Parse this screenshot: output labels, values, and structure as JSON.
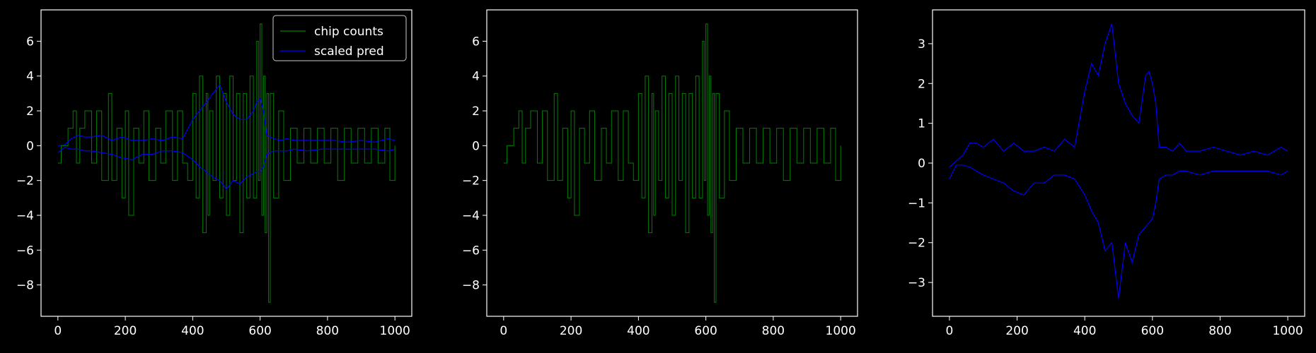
{
  "chart_data": [
    {
      "type": "line",
      "legend": {
        "placement": "top-right",
        "entries": [
          "chip counts",
          "scaled pred"
        ]
      },
      "x_ticks": [
        "0",
        "200",
        "400",
        "600",
        "800",
        "1000"
      ],
      "y_ticks": [
        "−8",
        "−6",
        "−4",
        "−2",
        "0",
        "2",
        "4",
        "6"
      ],
      "xlim": [
        -50,
        1050
      ],
      "ylim": [
        -9.8,
        7.8
      ],
      "grid": false,
      "series": [
        {
          "name": "chip counts",
          "color": "#008000",
          "style": "step",
          "x": [
            0,
            10,
            30,
            45,
            55,
            65,
            80,
            100,
            115,
            130,
            150,
            160,
            175,
            190,
            200,
            210,
            225,
            240,
            255,
            270,
            290,
            305,
            320,
            340,
            355,
            370,
            385,
            400,
            410,
            420,
            430,
            440,
            445,
            450,
            460,
            470,
            480,
            490,
            500,
            510,
            520,
            530,
            540,
            550,
            560,
            570,
            580,
            590,
            595,
            600,
            605,
            610,
            615,
            620,
            625,
            630,
            640,
            655,
            670,
            690,
            710,
            730,
            750,
            770,
            790,
            810,
            830,
            850,
            870,
            890,
            910,
            930,
            950,
            970,
            985,
            1000
          ],
          "y": [
            -1,
            0,
            1,
            2,
            -1,
            1,
            2,
            -1,
            2,
            -2,
            3,
            -2,
            1,
            -3,
            2,
            -4,
            1,
            -1,
            2,
            -2,
            1,
            -1,
            2,
            -2,
            2,
            -1,
            -2,
            3,
            -3,
            4,
            -5,
            3,
            -4,
            2,
            -2,
            4,
            -3,
            3,
            -4,
            4,
            -2,
            3,
            -5,
            3,
            -3,
            4,
            -3,
            6,
            -2,
            7,
            -4,
            4,
            -5,
            3,
            -9,
            3,
            -3,
            2,
            -2,
            1,
            -1,
            1,
            -1,
            1,
            -1,
            1,
            -2,
            1,
            -1,
            1,
            -1,
            1,
            -1,
            1,
            -2,
            0
          ]
        },
        {
          "name": "scaled pred",
          "color": "#0000ff",
          "x": [
            0,
            20,
            40,
            60,
            80,
            100,
            130,
            160,
            190,
            220,
            250,
            280,
            310,
            340,
            370,
            400,
            420,
            440,
            460,
            480,
            500,
            520,
            540,
            560,
            580,
            590,
            600,
            610,
            620,
            640,
            660,
            680,
            700,
            740,
            780,
            820,
            860,
            900,
            940,
            980,
            1000
          ],
          "y_upper": [
            0,
            0.05,
            0.4,
            0.6,
            0.5,
            0.5,
            0.6,
            0.3,
            0.5,
            0.3,
            0.3,
            0.4,
            0.3,
            0.5,
            0.4,
            1.5,
            2.0,
            2.5,
            3.0,
            3.5,
            2.5,
            1.8,
            1.5,
            1.5,
            2.0,
            2.5,
            2.7,
            2.0,
            0.6,
            0.4,
            0.3,
            0.4,
            0.3,
            0.3,
            0.3,
            0.3,
            0.2,
            0.3,
            0.2,
            0.4,
            0.3
          ],
          "y_lower": [
            -0.4,
            -0.1,
            -0.2,
            -0.2,
            -0.3,
            -0.3,
            -0.4,
            -0.5,
            -0.7,
            -0.8,
            -0.5,
            -0.5,
            -0.3,
            -0.3,
            -0.4,
            -0.8,
            -1.2,
            -1.5,
            -1.8,
            -2.0,
            -2.5,
            -2.0,
            -2.2,
            -1.8,
            -1.6,
            -1.5,
            -1.5,
            -1.2,
            -0.5,
            -0.3,
            -0.3,
            -0.3,
            -0.2,
            -0.3,
            -0.2,
            -0.2,
            -0.2,
            -0.2,
            -0.2,
            -0.3,
            -0.2
          ]
        }
      ]
    },
    {
      "type": "line",
      "x_ticks": [
        "0",
        "200",
        "400",
        "600",
        "800",
        "1000"
      ],
      "y_ticks": [
        "−8",
        "−6",
        "−4",
        "−2",
        "0",
        "2",
        "4",
        "6"
      ],
      "xlim": [
        -50,
        1050
      ],
      "ylim": [
        -9.8,
        7.8
      ],
      "grid": false,
      "series": [
        {
          "color": "#008000",
          "style": "step",
          "x": [
            0,
            10,
            30,
            45,
            55,
            65,
            80,
            100,
            115,
            130,
            150,
            160,
            175,
            190,
            200,
            210,
            225,
            240,
            255,
            270,
            290,
            305,
            320,
            340,
            355,
            370,
            385,
            400,
            410,
            420,
            430,
            440,
            445,
            450,
            460,
            470,
            480,
            490,
            500,
            510,
            520,
            530,
            540,
            550,
            560,
            570,
            580,
            590,
            595,
            600,
            605,
            610,
            615,
            620,
            625,
            630,
            640,
            655,
            670,
            690,
            710,
            730,
            750,
            770,
            790,
            810,
            830,
            850,
            870,
            890,
            910,
            930,
            950,
            970,
            985,
            1000
          ],
          "y": [
            -1,
            0,
            1,
            2,
            -1,
            1,
            2,
            -1,
            2,
            -2,
            3,
            -2,
            1,
            -3,
            2,
            -4,
            1,
            -1,
            2,
            -2,
            1,
            -1,
            2,
            -2,
            2,
            -1,
            -2,
            3,
            -3,
            4,
            -5,
            3,
            -4,
            2,
            -2,
            4,
            -3,
            3,
            -4,
            4,
            -2,
            3,
            -5,
            3,
            -3,
            4,
            -3,
            6,
            -2,
            7,
            -4,
            4,
            -5,
            3,
            -9,
            3,
            -3,
            2,
            -2,
            1,
            -1,
            1,
            -1,
            1,
            -1,
            1,
            -2,
            1,
            -1,
            1,
            -1,
            1,
            -1,
            1,
            -2,
            0
          ]
        }
      ]
    },
    {
      "type": "line",
      "x_ticks": [
        "0",
        "200",
        "400",
        "600",
        "800",
        "1000"
      ],
      "y_ticks": [
        "−3",
        "−2",
        "−1",
        "0",
        "1",
        "2",
        "3"
      ],
      "xlim": [
        -50,
        1050
      ],
      "ylim": [
        -3.85,
        3.85
      ],
      "grid": false,
      "series": [
        {
          "color": "#0000ff",
          "x": [
            0,
            20,
            40,
            60,
            80,
            100,
            130,
            160,
            190,
            220,
            250,
            280,
            310,
            340,
            370,
            400,
            420,
            440,
            460,
            480,
            500,
            520,
            540,
            560,
            580,
            590,
            600,
            610,
            620,
            640,
            660,
            680,
            700,
            740,
            780,
            820,
            860,
            900,
            940,
            980,
            1000
          ],
          "y_upper": [
            -0.1,
            0.05,
            0.2,
            0.5,
            0.5,
            0.4,
            0.6,
            0.3,
            0.5,
            0.3,
            0.3,
            0.4,
            0.3,
            0.6,
            0.4,
            1.8,
            2.5,
            2.2,
            3.0,
            3.5,
            2.0,
            1.5,
            1.2,
            1.0,
            2.2,
            2.3,
            2.0,
            1.5,
            0.4,
            0.4,
            0.3,
            0.5,
            0.3,
            0.3,
            0.4,
            0.3,
            0.2,
            0.3,
            0.2,
            0.4,
            0.3
          ],
          "y_lower": [
            -0.4,
            -0.05,
            -0.05,
            -0.1,
            -0.2,
            -0.3,
            -0.4,
            -0.5,
            -0.7,
            -0.8,
            -0.5,
            -0.5,
            -0.3,
            -0.3,
            -0.4,
            -0.8,
            -1.2,
            -1.5,
            -2.2,
            -2.0,
            -3.4,
            -2.0,
            -2.5,
            -1.8,
            -1.6,
            -1.5,
            -1.4,
            -1.0,
            -0.4,
            -0.3,
            -0.3,
            -0.2,
            -0.2,
            -0.3,
            -0.2,
            -0.2,
            -0.2,
            -0.2,
            -0.2,
            -0.3,
            -0.2
          ]
        }
      ]
    }
  ]
}
